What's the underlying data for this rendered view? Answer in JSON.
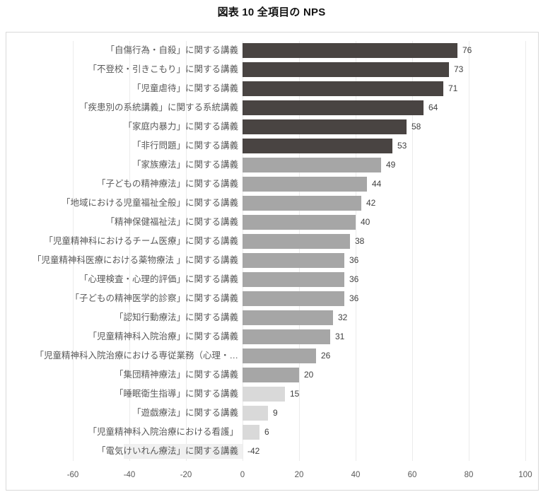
{
  "page": {
    "title": "図表 10 全項目の NPS"
  },
  "colors": {
    "bar_dark": "#494442",
    "bar_mid": "#a6a6a6",
    "bar_light": "#d9d9d9",
    "bar_faint": "#f0f0f0",
    "gridline": "#ebebeb",
    "chart_border": "#d9d9d9",
    "value_text": "#404040",
    "category_text": "#595959",
    "tick_text": "#595959",
    "title_text": "#121212"
  },
  "chart_data": {
    "type": "bar",
    "orientation": "horizontal",
    "title": "図表 10 全項目の NPS",
    "xlabel": "",
    "ylabel": "",
    "xlim": [
      -60,
      100
    ],
    "xticks": [
      -60,
      -40,
      -20,
      0,
      20,
      40,
      60,
      80,
      100
    ],
    "grid": true,
    "legend": false,
    "value_labels": "outside-end",
    "categories": [
      "「自傷行為・自殺」に関する講義",
      "「不登校・引きこもり」に関する講義",
      "「児童虐待」に関する講義",
      "「疾患別の系統講義」に関する系統講義",
      "「家庭内暴力」に関する講義",
      "「非行問題」に関する講義",
      "「家族療法」に関する講義",
      "「子どもの精神療法」に関する講義",
      "「地域における児童福祉全般」に関する講義",
      "「精神保健福祉法」に関する講義",
      "「児童精神科におけるチーム医療」に関する講義",
      "「児童精神科医療における薬物療法 」に関する講義",
      "「心理検査・心理的評価」に関する講義",
      "「子どもの精神医学的診察」に関する講義",
      "「認知行動療法」に関する講義",
      "「児童精神科入院治療」に関する講義",
      "「児童精神科入院治療における専従業務（心理・…",
      "「集団精神療法」に関する講義",
      "「睡眠衛生指導」に関する講義",
      "「遊戯療法」に関する講義",
      "「児童精神科入院治療における看護」",
      "「電気けいれん療法」に関する講義"
    ],
    "values": [
      76,
      73,
      71,
      64,
      58,
      53,
      49,
      44,
      42,
      40,
      38,
      36,
      36,
      36,
      32,
      31,
      26,
      20,
      15,
      9,
      6,
      -42
    ],
    "bar_colors": [
      "#494442",
      "#494442",
      "#494442",
      "#494442",
      "#494442",
      "#494442",
      "#a6a6a6",
      "#a6a6a6",
      "#a6a6a6",
      "#a6a6a6",
      "#a6a6a6",
      "#a6a6a6",
      "#a6a6a6",
      "#a6a6a6",
      "#a6a6a6",
      "#a6a6a6",
      "#a6a6a6",
      "#a6a6a6",
      "#d9d9d9",
      "#d9d9d9",
      "#d9d9d9",
      "#f0f0f0"
    ]
  }
}
